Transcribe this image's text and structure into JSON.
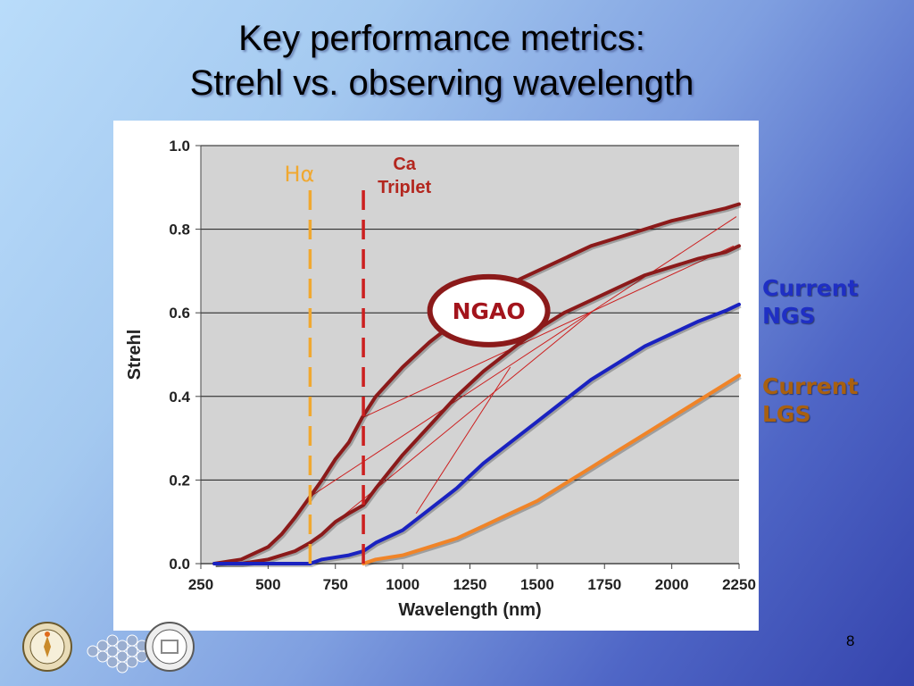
{
  "slide": {
    "title_line1": "Key performance metrics:",
    "title_line2": "Strehl vs. observing wavelength",
    "page_number": "8"
  },
  "legend": {
    "ngs_line1": "Current",
    "ngs_line2": "NGS",
    "lgs_line1": "Current",
    "lgs_line2": "LGS"
  },
  "colors": {
    "ngao": "#8b1a1a",
    "ngs": "#1a22c0",
    "lgs": "#f08428",
    "halpha": "#f0a830",
    "ca": "#cc1f1f",
    "plot_bg": "#d3d3d3"
  },
  "chart_data": {
    "type": "line",
    "xlabel": "Wavelength (nm)",
    "ylabel": "Strehl",
    "xlim": [
      250,
      2250
    ],
    "ylim": [
      0,
      1.0
    ],
    "x_ticks": [
      "250",
      "500",
      "750",
      "1000",
      "1250",
      "1500",
      "1750",
      "2000",
      "2250"
    ],
    "y_ticks": [
      "0.0",
      "0.2",
      "0.4",
      "0.6",
      "0.8",
      "1.0"
    ],
    "grid": "horizontal",
    "series": [
      {
        "key": "ngao_upper",
        "color": "#8b1a1a",
        "x": [
          300,
          400,
          500,
          550,
          600,
          656,
          700,
          750,
          800,
          850,
          900,
          1000,
          1100,
          1200,
          1300,
          1400,
          1500,
          1600,
          1700,
          1800,
          1900,
          2000,
          2100,
          2200,
          2250
        ],
        "y": [
          0.0,
          0.01,
          0.04,
          0.07,
          0.11,
          0.16,
          0.2,
          0.25,
          0.29,
          0.35,
          0.4,
          0.47,
          0.53,
          0.58,
          0.63,
          0.67,
          0.7,
          0.73,
          0.76,
          0.78,
          0.8,
          0.82,
          0.835,
          0.85,
          0.86
        ]
      },
      {
        "key": "ngao_lower",
        "color": "#8b1a1a",
        "x": [
          300,
          400,
          500,
          600,
          656,
          700,
          750,
          800,
          854,
          900,
          1000,
          1100,
          1200,
          1300,
          1400,
          1500,
          1600,
          1700,
          1800,
          1900,
          2000,
          2100,
          2200,
          2250
        ],
        "y": [
          0.0,
          0.0,
          0.01,
          0.03,
          0.05,
          0.07,
          0.1,
          0.12,
          0.14,
          0.18,
          0.26,
          0.33,
          0.4,
          0.46,
          0.51,
          0.56,
          0.6,
          0.63,
          0.66,
          0.69,
          0.71,
          0.73,
          0.745,
          0.76
        ]
      },
      {
        "key": "current_ngs",
        "color": "#1a22c0",
        "x": [
          300,
          500,
          656,
          700,
          800,
          854,
          900,
          1000,
          1100,
          1200,
          1300,
          1400,
          1500,
          1600,
          1700,
          1800,
          1900,
          2000,
          2100,
          2200,
          2250
        ],
        "y": [
          0.0,
          0.0,
          0.0,
          0.01,
          0.02,
          0.03,
          0.05,
          0.08,
          0.13,
          0.18,
          0.24,
          0.29,
          0.34,
          0.39,
          0.44,
          0.48,
          0.52,
          0.55,
          0.58,
          0.605,
          0.62
        ]
      },
      {
        "key": "current_lgs",
        "color": "#f08428",
        "x": [
          854,
          900,
          1000,
          1100,
          1200,
          1300,
          1400,
          1500,
          1600,
          1700,
          1800,
          1900,
          2000,
          2100,
          2200,
          2250
        ],
        "y": [
          0.0,
          0.01,
          0.02,
          0.04,
          0.06,
          0.09,
          0.12,
          0.15,
          0.19,
          0.23,
          0.27,
          0.31,
          0.35,
          0.39,
          0.43,
          0.45
        ]
      }
    ],
    "vlines": [
      {
        "x": 656,
        "label": "Hα",
        "color": "#f0a830"
      },
      {
        "x": 854,
        "label_line1": "Ca",
        "label_line2": "Triplet",
        "color": "#cc1f1f"
      }
    ],
    "annotation": "NGAO",
    "hatch": {
      "color": "#cc1f1f",
      "lines": [
        [
          656,
          0.16,
          2240,
          0.83
        ],
        [
          854,
          0.35,
          2230,
          0.76
        ],
        [
          656,
          0.05,
          1700,
          0.6
        ],
        [
          1050,
          0.12,
          1400,
          0.47
        ]
      ]
    }
  }
}
